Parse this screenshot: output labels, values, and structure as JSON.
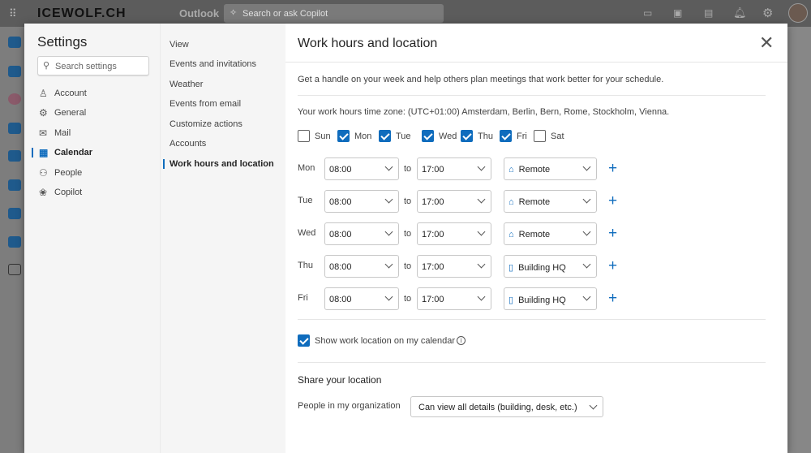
{
  "topbar": {
    "brand": "ICEWOLF.CH",
    "app": "Outlook",
    "search_placeholder": "Search or ask Copilot"
  },
  "settings": {
    "title": "Settings",
    "search_placeholder": "Search settings",
    "categories": [
      {
        "label": "Account",
        "icon": "person-icon"
      },
      {
        "label": "General",
        "icon": "gear-icon"
      },
      {
        "label": "Mail",
        "icon": "mail-icon"
      },
      {
        "label": "Calendar",
        "icon": "calendar-icon",
        "selected": true
      },
      {
        "label": "People",
        "icon": "people-icon"
      },
      {
        "label": "Copilot",
        "icon": "copilot-icon"
      }
    ],
    "subnav": [
      "View",
      "Events and invitations",
      "Weather",
      "Events from email",
      "Customize actions",
      "Accounts",
      "Work hours and location"
    ],
    "selected_subnav": "Work hours and location"
  },
  "content": {
    "title": "Work hours and location",
    "intro": "Get a handle on your week and help others plan meetings that work better for your schedule.",
    "timezone": "Your work hours time zone: (UTC+01:00) Amsterdam, Berlin, Bern, Rome, Stockholm, Vienna.",
    "days": [
      {
        "label": "Sun",
        "checked": false
      },
      {
        "label": "Mon",
        "checked": true
      },
      {
        "label": "Tue",
        "checked": true
      },
      {
        "label": "Wed",
        "checked": true
      },
      {
        "label": "Thu",
        "checked": true
      },
      {
        "label": "Fri",
        "checked": true
      },
      {
        "label": "Sat",
        "checked": false
      }
    ],
    "to_label": "to",
    "schedule": [
      {
        "day": "Mon",
        "start": "08:00",
        "end": "17:00",
        "location": "Remote",
        "loc_icon": "home-icon"
      },
      {
        "day": "Tue",
        "start": "08:00",
        "end": "17:00",
        "location": "Remote",
        "loc_icon": "home-icon"
      },
      {
        "day": "Wed",
        "start": "08:00",
        "end": "17:00",
        "location": "Remote",
        "loc_icon": "home-icon"
      },
      {
        "day": "Thu",
        "start": "08:00",
        "end": "17:00",
        "location": "Building HQ",
        "loc_icon": "building-icon"
      },
      {
        "day": "Fri",
        "start": "08:00",
        "end": "17:00",
        "location": "Building HQ",
        "loc_icon": "building-icon"
      }
    ],
    "show_location": {
      "label": "Show work location on my calendar",
      "checked": true
    },
    "share": {
      "heading": "Share your location",
      "label": "People in my organization",
      "value": "Can view all details (building, desk, etc.)"
    }
  },
  "colors": {
    "accent": "#0f6cbd"
  }
}
